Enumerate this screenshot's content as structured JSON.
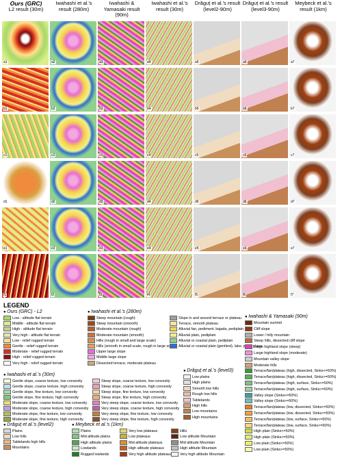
{
  "columns": [
    {
      "title": "Ours (GRC)",
      "subtitle": "L2 result (30m)"
    },
    {
      "title": "Iwahashi et al.'s result (280m)"
    },
    {
      "title": "Iwahashi & Yamasaki result (90m)"
    },
    {
      "title": "Iwahashi et al.'s result (30m)"
    },
    {
      "title": "Drăguț et al.'s result (level2-90m)"
    },
    {
      "title": "Drăguț et al.'s result (level3-90m)"
    },
    {
      "title": "Meybeck et al.'s result (1km)"
    }
  ],
  "panels": [
    [
      "a1",
      "a2",
      "a3",
      "a4",
      "a5",
      "a6",
      "a7"
    ],
    [
      "b1",
      "b2",
      "b3",
      "b4",
      "b5",
      "b6",
      "b7"
    ],
    [
      "c1",
      "c2",
      "c3",
      "c4",
      "c5",
      "c6",
      "c7"
    ],
    [
      "d1",
      "d2",
      "d3",
      "d4",
      "d5",
      "d6",
      "d7"
    ],
    [
      "e1",
      "e2",
      "e3",
      "e4",
      "e5",
      "e6",
      "e7"
    ],
    [
      "f1",
      "f2",
      "f3",
      "f4",
      "f5",
      "f6",
      "f7"
    ]
  ],
  "legend": {
    "title": "LEGEND",
    "groups": [
      {
        "name": "Ours (GRC) - L2",
        "items": [
          {
            "label": "Low - altitude flat terrain",
            "color": "#a6d96a"
          },
          {
            "label": "Middle - altitude flat terrain",
            "color": "#d9ef8b"
          },
          {
            "label": "High - altitude flat terrain",
            "color": "#c2d48a"
          },
          {
            "label": "Very high - altitude flat terrain",
            "color": "#e6e6b0"
          },
          {
            "label": "Low - relief rugged terrain",
            "color": "#fee08b"
          },
          {
            "label": "Gentle - relief rugged terrain",
            "color": "#f08a3c"
          },
          {
            "label": "Moderate - relief rugged terrain",
            "color": "#d7301f"
          },
          {
            "label": "High - relief rugged terrain",
            "color": "#8b1010"
          },
          {
            "label": "Very high - relief rugged terrain",
            "color": "#ffffff"
          }
        ]
      },
      {
        "name": "Iwahashi et al.'s (280m)",
        "items": [
          {
            "label": "Steep mountain (rough)",
            "color": "#7a3b12"
          },
          {
            "label": "Steep mountain (smooth)",
            "color": "#9c4a1a"
          },
          {
            "label": "Moderate mountain (rough)",
            "color": "#b8602a"
          },
          {
            "label": "Moderate mountain (smooth)",
            "color": "#c8773c"
          },
          {
            "label": "Hills (rough in small and large scale)",
            "color": "#d98f4e"
          },
          {
            "label": "Hills (smooth in small scale, rough in large scale)",
            "color": "#e0a060"
          },
          {
            "label": "Upper large slope",
            "color": "#e86fd0"
          },
          {
            "label": "Middle large slope",
            "color": "#f3a8e0"
          },
          {
            "label": "Dissected terrace, moderate plateau",
            "color": "#c9a77a"
          },
          {
            "label": "Slope in and around terrace or plateau",
            "color": "#a0a0a0"
          },
          {
            "label": "Terrace, smooth plateau",
            "color": "#f5e6a0"
          },
          {
            "label": "Alluvial fan, pediment, bajada, pediplain",
            "color": "#f7d24a"
          },
          {
            "label": "Alluvial plain, pediplain",
            "color": "#f0f08a"
          },
          {
            "label": "Alluvial or coastal plain, pediplain",
            "color": "#8fd08f"
          },
          {
            "label": "Alluvial or coastal plain (gentlest), lake, plain, playa",
            "color": "#2f6fd0"
          }
        ]
      },
      {
        "name": "Iwahashi & Yamasaki (90m)",
        "items": [
          {
            "label": "Mountain summit",
            "color": "#6b2a0e"
          },
          {
            "label": "Cliff slope",
            "color": "#8e3a14"
          },
          {
            "label": "Lower / hilly mountain",
            "color": "#b0b0b0"
          },
          {
            "label": "Steep hills, dissected cliff slope",
            "color": "#c06a3a"
          },
          {
            "label": "Large highland slope (steep)",
            "color": "#e040c0"
          },
          {
            "label": "Large highland slope (moderate)",
            "color": "#f090d8"
          },
          {
            "label": "Mountain valley slope",
            "color": "#d0d0d0"
          },
          {
            "label": "Moderate hills",
            "color": "#d8a070"
          },
          {
            "label": "Terrace/fan/plateau (high, dissected, Sinks<=50%)",
            "color": "#3a9a3a"
          },
          {
            "label": "Terrace/fan/plateau (high, dissected, Sinks>=50%)",
            "color": "#5ab05a"
          },
          {
            "label": "Terrace/fan/plateau (high, surface, Sinks<=50%)",
            "color": "#80c080"
          },
          {
            "label": "Terrace/fan/plateau (high, surface, Sinks>=50%)",
            "color": "#a0d0a0"
          },
          {
            "label": "Valley slope (Sinks<=50%)",
            "color": "#40a0a0"
          },
          {
            "label": "Valley slope (Sinks>=50%)",
            "color": "#70c0c0"
          },
          {
            "label": "Terrace/fan/plateau (low, dissected, Sinks<=50%)",
            "color": "#e08020"
          },
          {
            "label": "Terrace/fan/plateau (low, dissected, Sinks>=50%)",
            "color": "#f0a040"
          },
          {
            "label": "Terrace/fan/plateau (low, surface, Sinks<=50%)",
            "color": "#f0c060"
          },
          {
            "label": "Terrace/fan/plateau (low, surface, Sinks>=50%)",
            "color": "#f8d880"
          },
          {
            "label": "High plain (Sinks<=50%)",
            "color": "#c8e040"
          },
          {
            "label": "High plain (Sinks>=50%)",
            "color": "#e0f070"
          },
          {
            "label": "Low plain (Sinks<=50%)",
            "color": "#f0f060"
          },
          {
            "label": "Low plain (Sinks>=50%)",
            "color": "#fafab0"
          }
        ]
      },
      {
        "name": "Iwahashi et al.'s (30m)",
        "items": [
          {
            "label": "Gentle slope, coarse texture, low convexity",
            "color": "#ffffd0"
          },
          {
            "label": "Gentle slope, coarse texture, high convexity",
            "color": "#c0e0f0"
          },
          {
            "label": "Gentle slope, fine texture, low convexity",
            "color": "#a0d8a0"
          },
          {
            "label": "Gentle slope, fine texture, high convexity",
            "color": "#80c880"
          },
          {
            "label": "Moderate slope, coarse texture, low convexity",
            "color": "#e8e070"
          },
          {
            "label": "Moderate slope, coarse texture, high convexity",
            "color": "#c0a0e0"
          },
          {
            "label": "Moderate slope, fine texture, low convexity",
            "color": "#b0c060"
          },
          {
            "label": "Moderate slope, fine texture, high convexity",
            "color": "#90a840"
          },
          {
            "label": "Steep slope, coarse texture, low convexity",
            "color": "#f8c8d8"
          },
          {
            "label": "Steep slope, coarse texture, high convexity",
            "color": "#f0a0b8"
          },
          {
            "label": "Steep slope, fine texture, low convexity",
            "color": "#f8d0a0"
          },
          {
            "label": "Steep slope, fine texture, high convexity",
            "color": "#e8b080"
          },
          {
            "label": "Very steep slope, coarse texture, low convexity",
            "color": "#e080c0"
          },
          {
            "label": "Very steep slope, coarse texture, high convexity",
            "color": "#c060a0"
          },
          {
            "label": "Very steep slope, fine texture, low convexity",
            "color": "#c08040"
          },
          {
            "label": "Very steep slope, fine texture, high convexity",
            "color": "#905020"
          }
        ]
      },
      {
        "name": "Drăguț et al.'s (level3)",
        "items": [
          {
            "label": "Low plains",
            "color": "#f5f5f0"
          },
          {
            "label": "High plains",
            "color": "#e0e0e0"
          },
          {
            "label": "Smooth low hills",
            "color": "#f0d8c0"
          },
          {
            "label": "Rough low hills",
            "color": "#e8c0a0"
          },
          {
            "label": "Tablelands",
            "color": "#f0c0d0"
          },
          {
            "label": "High hills",
            "color": "#d8a070"
          },
          {
            "label": "Low mountains",
            "color": "#c08050"
          },
          {
            "label": "High mountains",
            "color": "#a06030"
          }
        ]
      },
      {
        "name": "Drăguț et al.'s (level2)",
        "items": [
          {
            "label": "Plains",
            "color": "#d8d8d8"
          },
          {
            "label": "Low hills",
            "color": "#f0dcc0"
          },
          {
            "label": "Tablelands high hills",
            "color": "#e8b88a"
          },
          {
            "label": "Mountains",
            "color": "#c8905a"
          }
        ]
      },
      {
        "name": "Meybeck et al.'s (1km)",
        "items": [
          {
            "label": "Plains",
            "color": "#b0e0b0"
          },
          {
            "label": "Mid altitude plains",
            "color": "#80c880"
          },
          {
            "label": "High altitude plains",
            "color": "#50a850"
          },
          {
            "label": "Lowlands",
            "color": "#c8e8c8"
          },
          {
            "label": "Rugged lowlands",
            "color": "#208020"
          },
          {
            "label": "Very low plateaus",
            "color": "#e0d870"
          },
          {
            "label": "Low plateaus",
            "color": "#c8b040"
          },
          {
            "label": "Mid altitude plateaus",
            "color": "#d89030"
          },
          {
            "label": "High altitude plateaus",
            "color": "#c86020"
          },
          {
            "label": "Very high altitude plateaus",
            "color": "#a04010"
          },
          {
            "label": "Hills",
            "color": "#804020"
          },
          {
            "label": "Low altitude Mountain",
            "color": "#602010"
          },
          {
            "label": "Mid altitude Mountain",
            "color": "#909090"
          },
          {
            "label": "High altitude Mountain",
            "color": "#c0c0c0"
          },
          {
            "label": "Very high altitude Mountain",
            "color": "#f4f4f4"
          }
        ]
      }
    ]
  }
}
